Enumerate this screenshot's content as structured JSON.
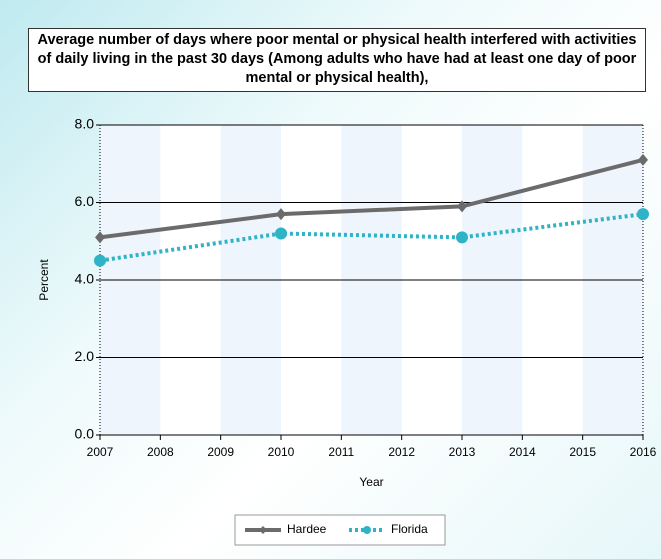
{
  "chart_data": {
    "type": "line",
    "title": "Average number of days where poor mental or physical health interfered with activities of daily living in the past 30 days (Among adults who have had at least one day of poor mental or physical health),",
    "x_label": "Year",
    "y_label": "Percent",
    "x": [
      2007,
      2010,
      2013,
      2016
    ],
    "series": [
      {
        "name": "Hardee",
        "color": "#6b6b6b",
        "values": [
          5.1,
          5.7,
          5.9,
          7.1
        ]
      },
      {
        "name": "Florida",
        "color": "#2fb3c6",
        "values": [
          4.5,
          5.2,
          5.1,
          5.7
        ]
      }
    ],
    "xlim": [
      2007,
      2016
    ],
    "xticks": [
      2007,
      2008,
      2009,
      2010,
      2011,
      2012,
      2013,
      2014,
      2015,
      2016
    ],
    "ylim": [
      0,
      8
    ],
    "yticks": [
      {
        "value": 0,
        "label": "0.0"
      },
      {
        "value": 2,
        "label": "2.0"
      },
      {
        "value": 4,
        "label": "4.0"
      },
      {
        "value": 6,
        "label": "6.0"
      },
      {
        "value": 8,
        "label": "8.0"
      }
    ],
    "grid": true,
    "legend": "bottom"
  }
}
